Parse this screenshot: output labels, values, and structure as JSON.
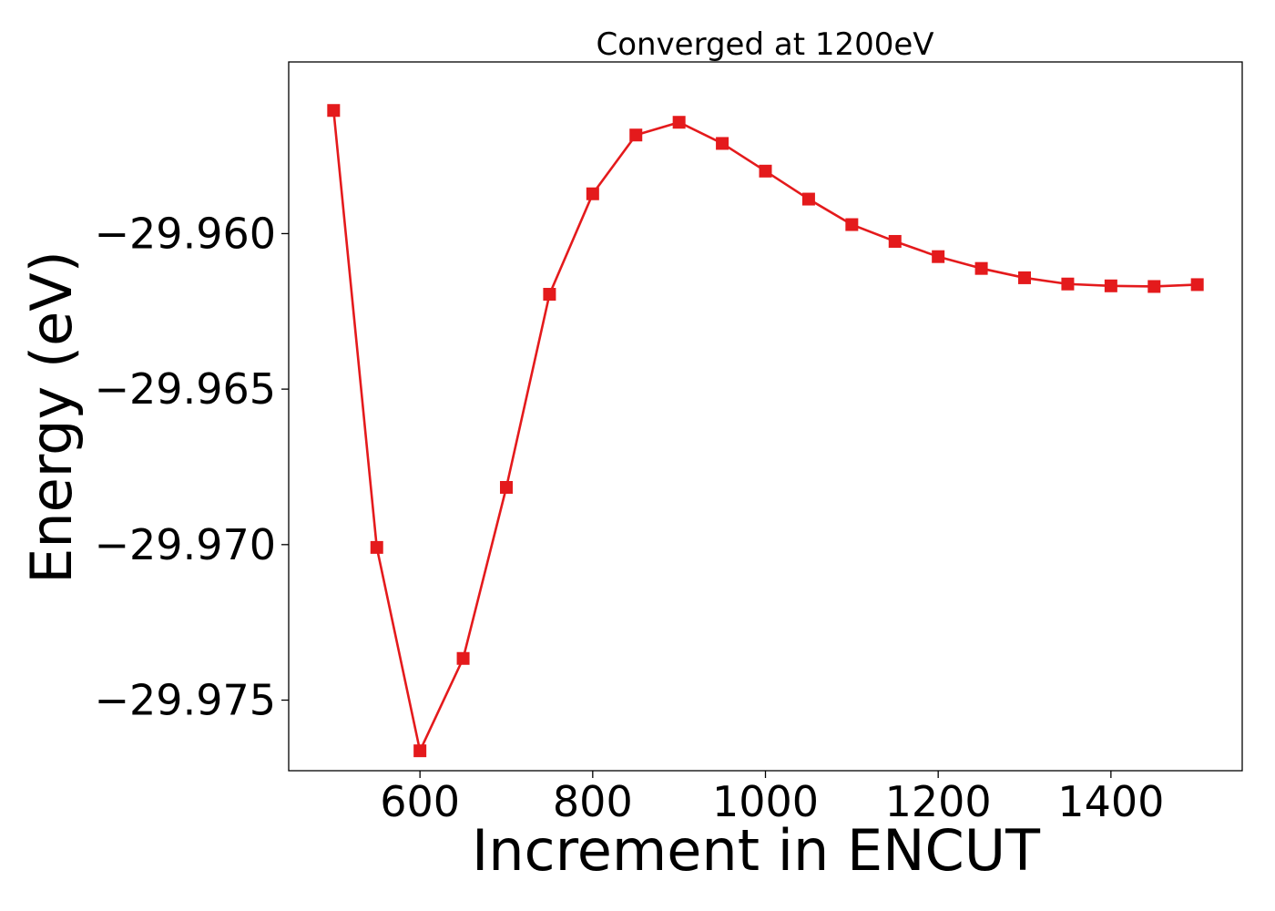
{
  "chart_data": {
    "type": "line",
    "title": "Converged at 1200eV",
    "xlabel": "Increment in ENCUT",
    "ylabel": "Energy (eV)",
    "xlim": [
      448,
      1552
    ],
    "ylim": [
      -29.97727,
      -29.95448
    ],
    "x_ticks": [
      600,
      800,
      1000,
      1200,
      1400
    ],
    "x_tick_labels": [
      "600",
      "800",
      "1000",
      "1200",
      "1400"
    ],
    "y_ticks": [
      -29.96,
      -29.965,
      -29.97,
      -29.975
    ],
    "y_tick_labels": [
      "−29.960",
      "−29.965",
      "−29.970",
      "−29.975"
    ],
    "grid": false,
    "series": [
      {
        "color": "#e41a1c",
        "marker": "square",
        "x": [
          500,
          550,
          600,
          650,
          700,
          750,
          800,
          850,
          900,
          950,
          1000,
          1050,
          1100,
          1150,
          1200,
          1250,
          1300,
          1350,
          1400,
          1450,
          1500
        ],
        "y": [
          -29.95604,
          -29.97009,
          -29.97663,
          -29.97366,
          -29.96816,
          -29.96195,
          -29.95872,
          -29.95683,
          -29.95642,
          -29.9571,
          -29.95799,
          -29.95889,
          -29.95971,
          -29.96025,
          -29.96074,
          -29.96112,
          -29.96142,
          -29.96162,
          -29.96168,
          -29.9617,
          -29.96164
        ]
      }
    ]
  }
}
